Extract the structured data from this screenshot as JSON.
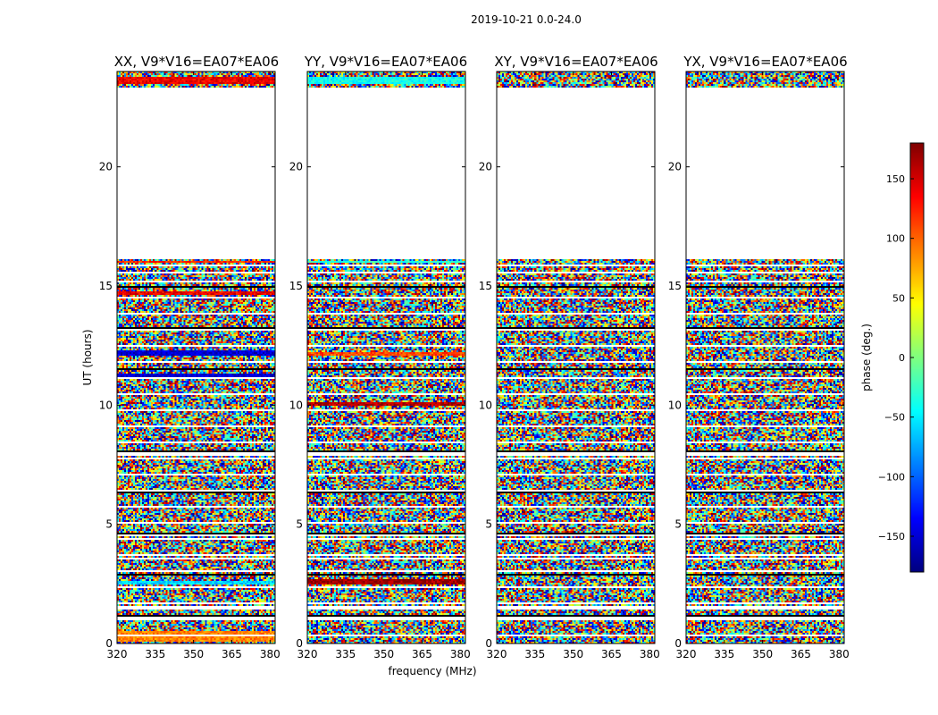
{
  "chart_data": {
    "type": "heatmap",
    "suptitle": "2019-10-21 0.0-24.0",
    "xlabel": "frequency (MHz)",
    "ylabel": "UT (hours)",
    "xlim": [
      320,
      382
    ],
    "ylim": [
      0,
      24
    ],
    "x_ticks": [
      "320",
      "335",
      "350",
      "365",
      "380"
    ],
    "y_ticks": [
      "0",
      "5",
      "10",
      "15",
      "20"
    ],
    "panels": [
      {
        "title": "XX, V9*V16=EA07*EA06",
        "gap_hours": [
          [
            0.98,
            1.1
          ],
          [
            1.45,
            1.55
          ],
          [
            3.5,
            3.6
          ],
          [
            4.5,
            4.6
          ],
          [
            7.9,
            8.0
          ],
          [
            15.55,
            15.6
          ],
          [
            16.1,
            23.3
          ]
        ],
        "bands": [
          {
            "start": 0.05,
            "end": 0.55,
            "phase": 90
          },
          {
            "start": 2.45,
            "end": 2.65,
            "phase": -60
          },
          {
            "start": 11.1,
            "end": 11.3,
            "phase": -150
          },
          {
            "start": 12.1,
            "end": 12.3,
            "phase": -150
          },
          {
            "start": 14.6,
            "end": 14.8,
            "phase": 140
          },
          {
            "start": 15.95,
            "end": 16.05,
            "phase": 120
          },
          {
            "start": 23.45,
            "end": 23.8,
            "phase": 140
          }
        ]
      },
      {
        "title": "YY, V9*V16=EA07*EA06",
        "gap_hours": [
          [
            0.98,
            1.1
          ],
          [
            1.45,
            1.55
          ],
          [
            3.5,
            3.6
          ],
          [
            4.5,
            4.6
          ],
          [
            7.9,
            8.0
          ],
          [
            15.55,
            15.6
          ],
          [
            16.1,
            23.3
          ]
        ],
        "bands": [
          {
            "start": 2.45,
            "end": 2.7,
            "phase": 170
          },
          {
            "start": 9.95,
            "end": 10.15,
            "phase": 160
          },
          {
            "start": 12.05,
            "end": 12.25,
            "phase": 110
          },
          {
            "start": 15.95,
            "end": 16.05,
            "phase": -30
          },
          {
            "start": 23.45,
            "end": 23.75,
            "phase": -40
          }
        ]
      },
      {
        "title": "XY, V9*V16=EA07*EA06",
        "gap_hours": [
          [
            0.98,
            1.1
          ],
          [
            1.45,
            1.55
          ],
          [
            3.5,
            3.6
          ],
          [
            4.5,
            4.6
          ],
          [
            7.9,
            8.0
          ],
          [
            15.55,
            15.6
          ],
          [
            16.1,
            23.3
          ]
        ],
        "bands": []
      },
      {
        "title": "YX, V9*V16=EA07*EA06",
        "gap_hours": [
          [
            0.98,
            1.1
          ],
          [
            1.45,
            1.55
          ],
          [
            3.5,
            3.6
          ],
          [
            4.5,
            4.6
          ],
          [
            7.9,
            8.0
          ],
          [
            15.55,
            15.6
          ],
          [
            16.1,
            23.3
          ]
        ],
        "bands": []
      }
    ],
    "colorbar": {
      "label": "phase (deg.)",
      "vmin": -180,
      "vmax": 180,
      "ticks": [
        "150",
        "100",
        "50",
        "0",
        "−50",
        "−100",
        "−150"
      ],
      "tick_values": [
        150,
        100,
        50,
        0,
        -50,
        -100,
        -150
      ],
      "colormap": "jet"
    }
  }
}
